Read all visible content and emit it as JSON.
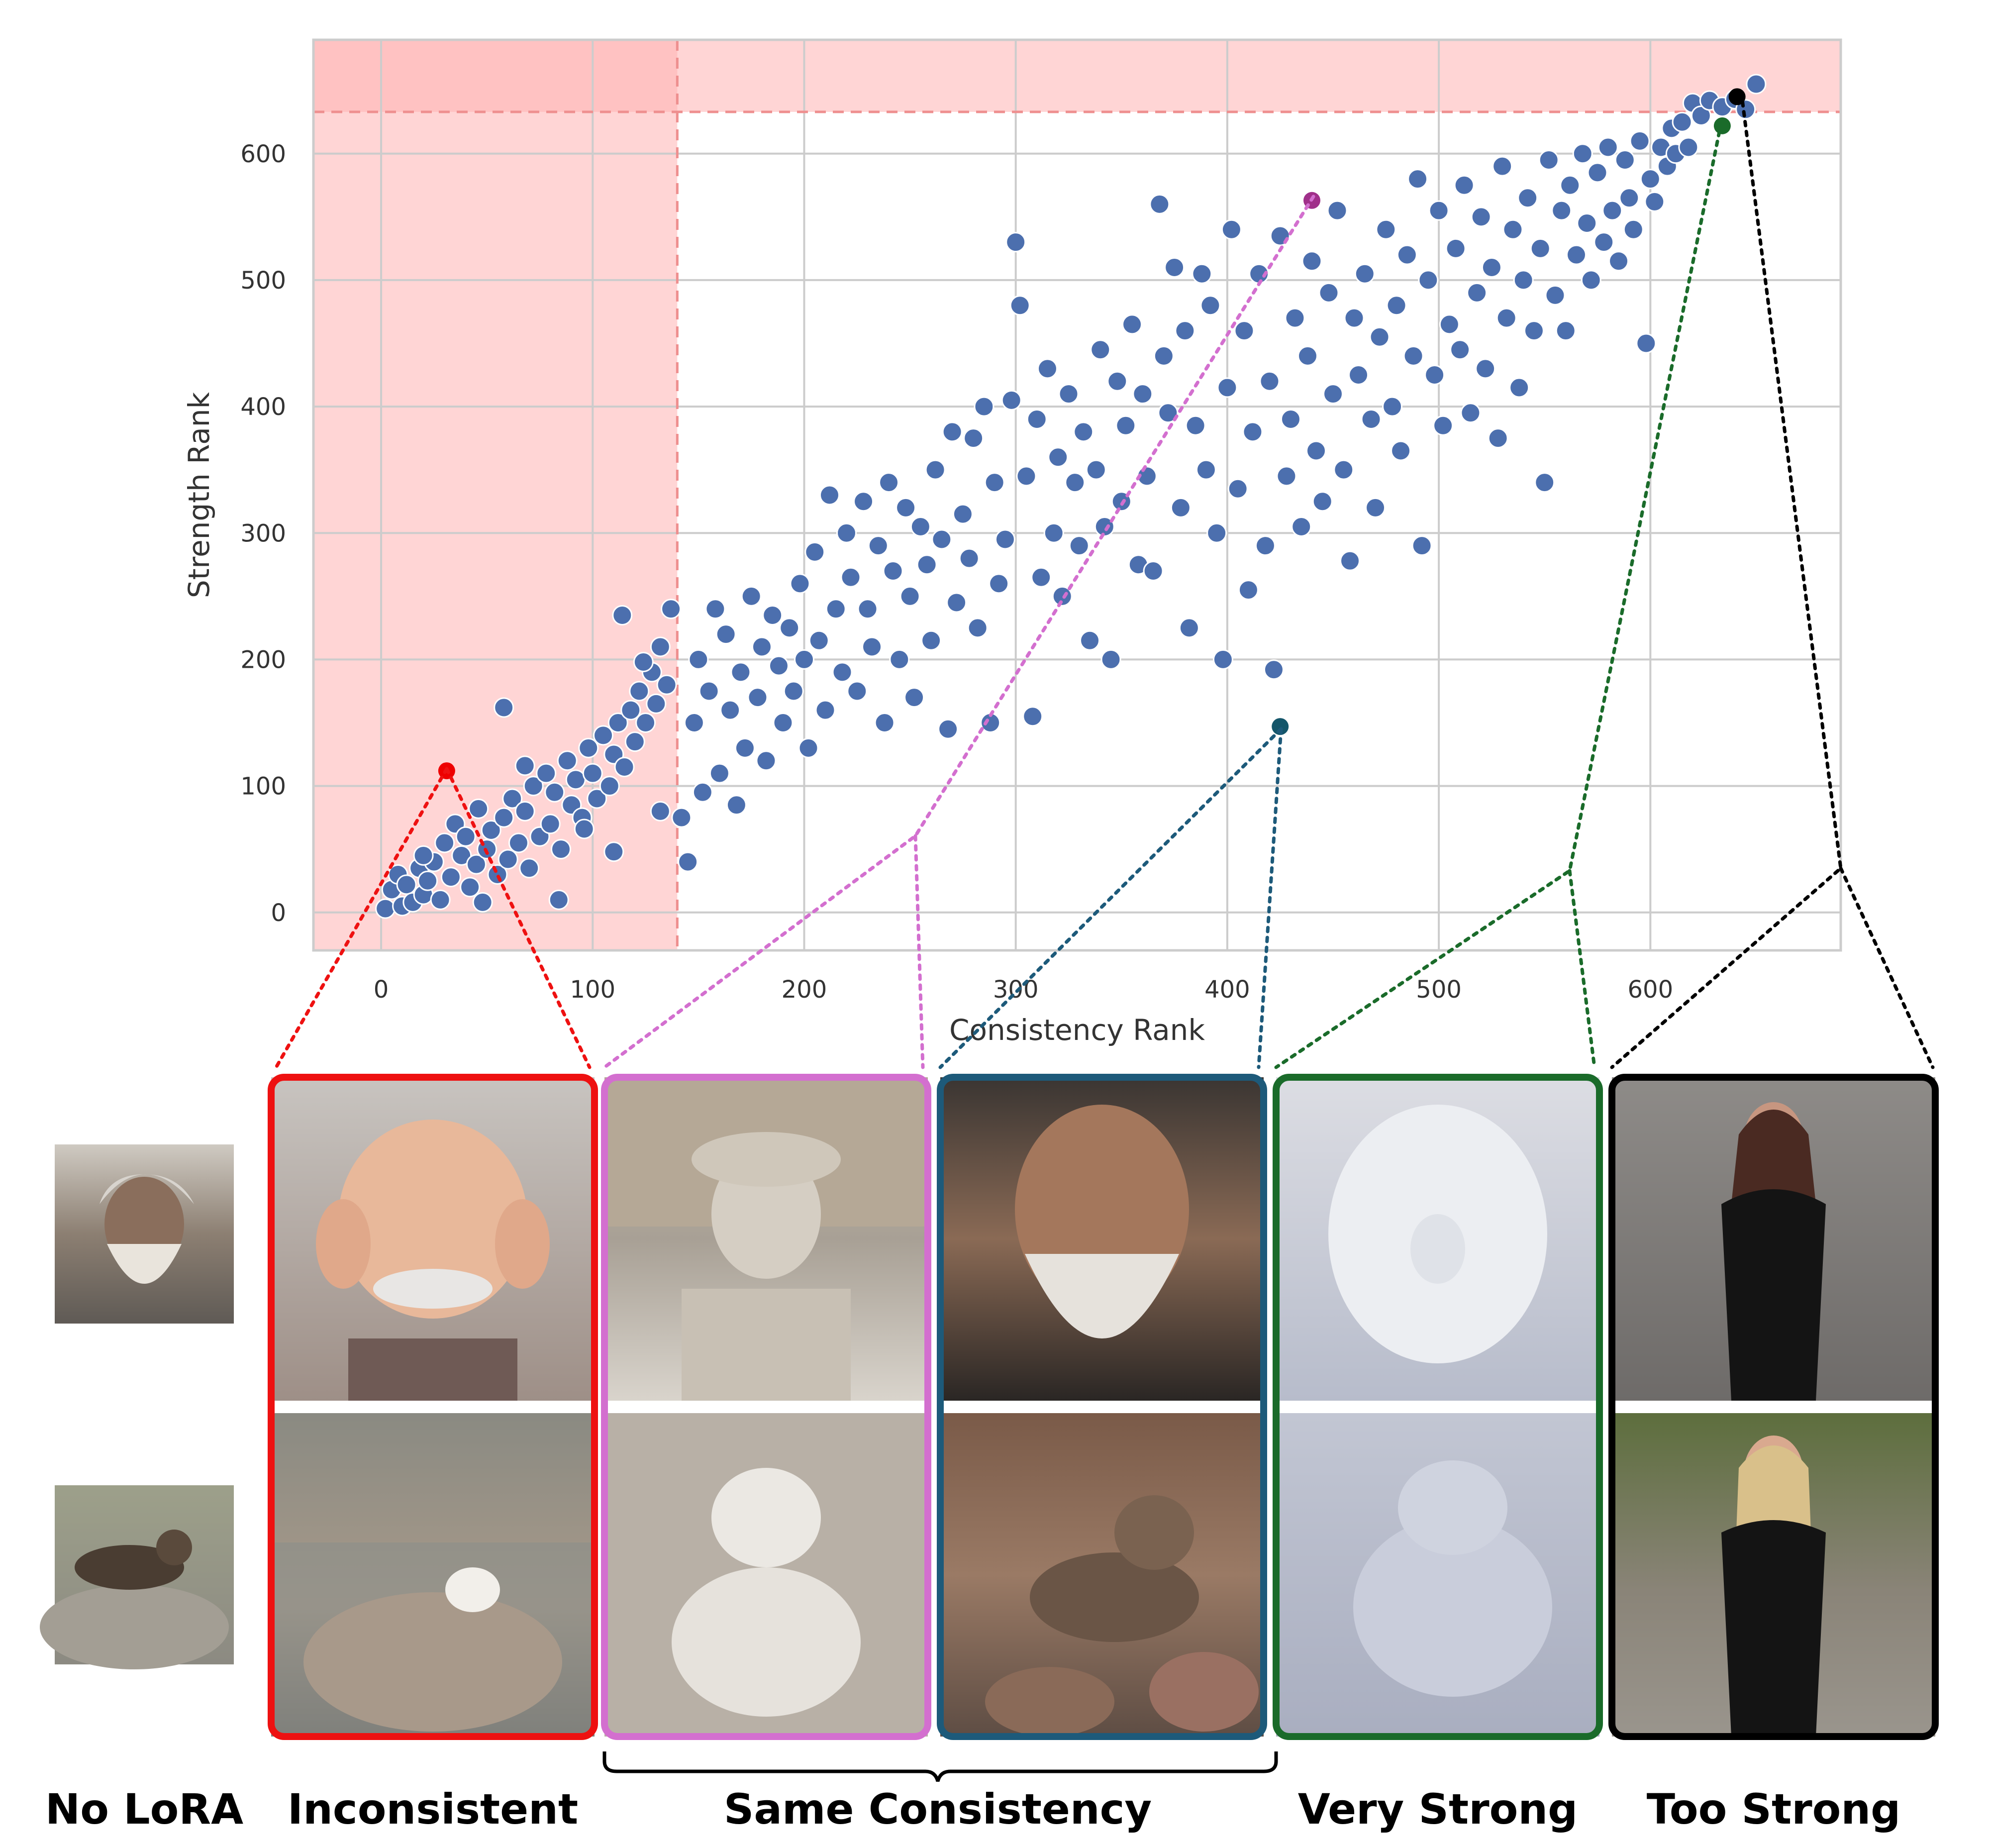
{
  "chart_data": {
    "type": "scatter",
    "xlabel": "Consistency Rank",
    "ylabel": "Strength Rank",
    "xlim": [
      -32,
      690
    ],
    "ylim": [
      -30,
      690
    ],
    "xticks": [
      0,
      100,
      200,
      300,
      400,
      500,
      600
    ],
    "yticks": [
      0,
      100,
      200,
      300,
      400,
      500,
      600
    ],
    "grid": true,
    "point_color": "#4c6fae",
    "shaded_regions": [
      {
        "axis": "x",
        "from": -32,
        "to": 140,
        "color": "#ffb3b3"
      },
      {
        "axis": "y",
        "from": 633,
        "to": 690,
        "color": "#ffb3b3"
      }
    ],
    "series": [
      {
        "values": [
          [
            2,
            3
          ],
          [
            5,
            18
          ],
          [
            8,
            30
          ],
          [
            10,
            5
          ],
          [
            12,
            22
          ],
          [
            15,
            8
          ],
          [
            18,
            35
          ],
          [
            20,
            14
          ],
          [
            22,
            25
          ],
          [
            25,
            40
          ],
          [
            28,
            10
          ],
          [
            30,
            55
          ],
          [
            33,
            28
          ],
          [
            35,
            70
          ],
          [
            38,
            45
          ],
          [
            40,
            60
          ],
          [
            42,
            20
          ],
          [
            45,
            38
          ],
          [
            48,
            8
          ],
          [
            50,
            50
          ],
          [
            52,
            65
          ],
          [
            55,
            30
          ],
          [
            58,
            75
          ],
          [
            60,
            42
          ],
          [
            62,
            90
          ],
          [
            65,
            55
          ],
          [
            68,
            80
          ],
          [
            70,
            35
          ],
          [
            72,
            100
          ],
          [
            75,
            60
          ],
          [
            78,
            110
          ],
          [
            80,
            70
          ],
          [
            82,
            95
          ],
          [
            85,
            50
          ],
          [
            88,
            120
          ],
          [
            90,
            85
          ],
          [
            92,
            105
          ],
          [
            95,
            75
          ],
          [
            98,
            130
          ],
          [
            100,
            110
          ],
          [
            102,
            90
          ],
          [
            105,
            140
          ],
          [
            108,
            100
          ],
          [
            110,
            125
          ],
          [
            112,
            150
          ],
          [
            115,
            115
          ],
          [
            118,
            160
          ],
          [
            120,
            135
          ],
          [
            122,
            175
          ],
          [
            125,
            150
          ],
          [
            128,
            190
          ],
          [
            130,
            165
          ],
          [
            132,
            210
          ],
          [
            135,
            180
          ],
          [
            137,
            240
          ],
          [
            58,
            162
          ],
          [
            110,
            48
          ],
          [
            132,
            80
          ],
          [
            114,
            235
          ],
          [
            84,
            10
          ],
          [
            20,
            45
          ],
          [
            46,
            82
          ],
          [
            68,
            116
          ],
          [
            96,
            66
          ],
          [
            124,
            198
          ],
          [
            142,
            75
          ],
          [
            145,
            40
          ],
          [
            148,
            150
          ],
          [
            150,
            200
          ],
          [
            152,
            95
          ],
          [
            155,
            175
          ],
          [
            158,
            240
          ],
          [
            160,
            110
          ],
          [
            163,
            220
          ],
          [
            165,
            160
          ],
          [
            168,
            85
          ],
          [
            170,
            190
          ],
          [
            172,
            130
          ],
          [
            175,
            250
          ],
          [
            178,
            170
          ],
          [
            180,
            210
          ],
          [
            182,
            120
          ],
          [
            185,
            235
          ],
          [
            188,
            195
          ],
          [
            190,
            150
          ],
          [
            193,
            225
          ],
          [
            195,
            175
          ],
          [
            198,
            260
          ],
          [
            200,
            200
          ],
          [
            202,
            130
          ],
          [
            205,
            285
          ],
          [
            207,
            215
          ],
          [
            210,
            160
          ],
          [
            212,
            330
          ],
          [
            215,
            240
          ],
          [
            218,
            190
          ],
          [
            220,
            300
          ],
          [
            222,
            265
          ],
          [
            225,
            175
          ],
          [
            228,
            325
          ],
          [
            230,
            240
          ],
          [
            232,
            210
          ],
          [
            235,
            290
          ],
          [
            238,
            150
          ],
          [
            240,
            340
          ],
          [
            242,
            270
          ],
          [
            245,
            200
          ],
          [
            248,
            320
          ],
          [
            250,
            250
          ],
          [
            252,
            170
          ],
          [
            255,
            305
          ],
          [
            258,
            275
          ],
          [
            260,
            215
          ],
          [
            262,
            350
          ],
          [
            265,
            295
          ],
          [
            268,
            145
          ],
          [
            270,
            380
          ],
          [
            272,
            245
          ],
          [
            275,
            315
          ],
          [
            278,
            280
          ],
          [
            280,
            375
          ],
          [
            282,
            225
          ],
          [
            285,
            400
          ],
          [
            288,
            150
          ],
          [
            290,
            340
          ],
          [
            292,
            260
          ],
          [
            295,
            295
          ],
          [
            298,
            405
          ],
          [
            300,
            530
          ],
          [
            302,
            480
          ],
          [
            305,
            345
          ],
          [
            308,
            155
          ],
          [
            310,
            390
          ],
          [
            312,
            265
          ],
          [
            315,
            430
          ],
          [
            318,
            300
          ],
          [
            320,
            360
          ],
          [
            322,
            250
          ],
          [
            325,
            410
          ],
          [
            328,
            340
          ],
          [
            330,
            290
          ],
          [
            332,
            380
          ],
          [
            335,
            215
          ],
          [
            338,
            350
          ],
          [
            340,
            445
          ],
          [
            342,
            305
          ],
          [
            345,
            200
          ],
          [
            348,
            420
          ],
          [
            350,
            325
          ],
          [
            352,
            385
          ],
          [
            355,
            465
          ],
          [
            358,
            275
          ],
          [
            360,
            410
          ],
          [
            362,
            345
          ],
          [
            365,
            270
          ],
          [
            368,
            560
          ],
          [
            370,
            440
          ],
          [
            372,
            395
          ],
          [
            375,
            510
          ],
          [
            378,
            320
          ],
          [
            380,
            460
          ],
          [
            382,
            225
          ],
          [
            385,
            385
          ],
          [
            388,
            505
          ],
          [
            390,
            350
          ],
          [
            392,
            480
          ],
          [
            395,
            300
          ],
          [
            398,
            200
          ],
          [
            400,
            415
          ],
          [
            402,
            540
          ],
          [
            405,
            335
          ],
          [
            408,
            460
          ],
          [
            410,
            255
          ],
          [
            412,
            380
          ],
          [
            415,
            505
          ],
          [
            418,
            290
          ],
          [
            420,
            420
          ],
          [
            422,
            192
          ],
          [
            425,
            535
          ],
          [
            428,
            345
          ],
          [
            430,
            390
          ],
          [
            432,
            470
          ],
          [
            435,
            305
          ],
          [
            438,
            440
          ],
          [
            440,
            515
          ],
          [
            442,
            365
          ],
          [
            445,
            325
          ],
          [
            448,
            490
          ],
          [
            450,
            410
          ],
          [
            452,
            555
          ],
          [
            455,
            350
          ],
          [
            458,
            278
          ],
          [
            460,
            470
          ],
          [
            462,
            425
          ],
          [
            465,
            505
          ],
          [
            468,
            390
          ],
          [
            470,
            320
          ],
          [
            472,
            455
          ],
          [
            475,
            540
          ],
          [
            478,
            400
          ],
          [
            480,
            480
          ],
          [
            482,
            365
          ],
          [
            485,
            520
          ],
          [
            488,
            440
          ],
          [
            490,
            580
          ],
          [
            492,
            290
          ],
          [
            495,
            500
          ],
          [
            498,
            425
          ],
          [
            500,
            555
          ],
          [
            502,
            385
          ],
          [
            505,
            465
          ],
          [
            508,
            525
          ],
          [
            510,
            445
          ],
          [
            512,
            575
          ],
          [
            515,
            395
          ],
          [
            518,
            490
          ],
          [
            520,
            550
          ],
          [
            522,
            430
          ],
          [
            525,
            510
          ],
          [
            528,
            375
          ],
          [
            530,
            590
          ],
          [
            532,
            470
          ],
          [
            535,
            540
          ],
          [
            538,
            415
          ],
          [
            540,
            500
          ],
          [
            542,
            565
          ],
          [
            545,
            460
          ],
          [
            548,
            525
          ],
          [
            550,
            340
          ],
          [
            552,
            595
          ],
          [
            555,
            488
          ],
          [
            558,
            555
          ],
          [
            560,
            460
          ],
          [
            562,
            575
          ],
          [
            565,
            520
          ],
          [
            568,
            600
          ],
          [
            570,
            545
          ],
          [
            572,
            500
          ],
          [
            575,
            585
          ],
          [
            578,
            530
          ],
          [
            580,
            605
          ],
          [
            582,
            555
          ],
          [
            585,
            515
          ],
          [
            588,
            595
          ],
          [
            590,
            565
          ],
          [
            592,
            540
          ],
          [
            595,
            610
          ],
          [
            598,
            450
          ],
          [
            600,
            580
          ],
          [
            602,
            562
          ],
          [
            605,
            605
          ],
          [
            608,
            590
          ],
          [
            610,
            620
          ],
          [
            612,
            600
          ],
          [
            615,
            625
          ],
          [
            618,
            605
          ],
          [
            620,
            640
          ],
          [
            624,
            630
          ],
          [
            628,
            642
          ],
          [
            634,
            637
          ],
          [
            640,
            643
          ],
          [
            645,
            635
          ],
          [
            650,
            655
          ]
        ]
      },
      {
        "values": [
          [
            31,
            112
          ]
        ],
        "color": "#ee0000"
      },
      {
        "values": [
          [
            440,
            563
          ]
        ],
        "color": "#a0308a"
      },
      {
        "values": [
          [
            425,
            147
          ]
        ],
        "color": "#14566a"
      },
      {
        "values": [
          [
            634,
            622
          ]
        ],
        "color": "#1a6b2a"
      },
      {
        "values": [
          [
            641,
            645
          ]
        ],
        "color": "#000000"
      }
    ]
  },
  "panels": [
    {
      "caption": "No LoRA",
      "color": "#ffffff",
      "top_image": "portrait-of-elderly-man-with-beard",
      "bottom_image": "tabby-cat-lying-on-rock"
    },
    {
      "caption": "Inconsistent",
      "color": "#ee1111",
      "top_image": "cartoon-old-man-caricature",
      "bottom_image": "white-cat-on-rock-by-water"
    },
    {
      "caption": "",
      "color": "#d36fcf",
      "top_image": "marble-statue-of-man-in-gallery",
      "bottom_image": "cracked-marble-cat-statue"
    },
    {
      "caption": "",
      "color": "#1d5a7a",
      "top_image": "detailed-old-man-portrait",
      "bottom_image": "tabby-cat-among-stones"
    },
    {
      "caption": "Very Strong",
      "color": "#1a6b2a",
      "top_image": "snow-sculpture-face",
      "bottom_image": "snow-sculpture-cat"
    },
    {
      "caption": "Too Strong",
      "color": "#000000",
      "top_image": "woman-in-black-latex-suit-indoor",
      "bottom_image": "woman-in-black-latex-suit-outdoor"
    }
  ],
  "group_caption": "Same Consistency"
}
